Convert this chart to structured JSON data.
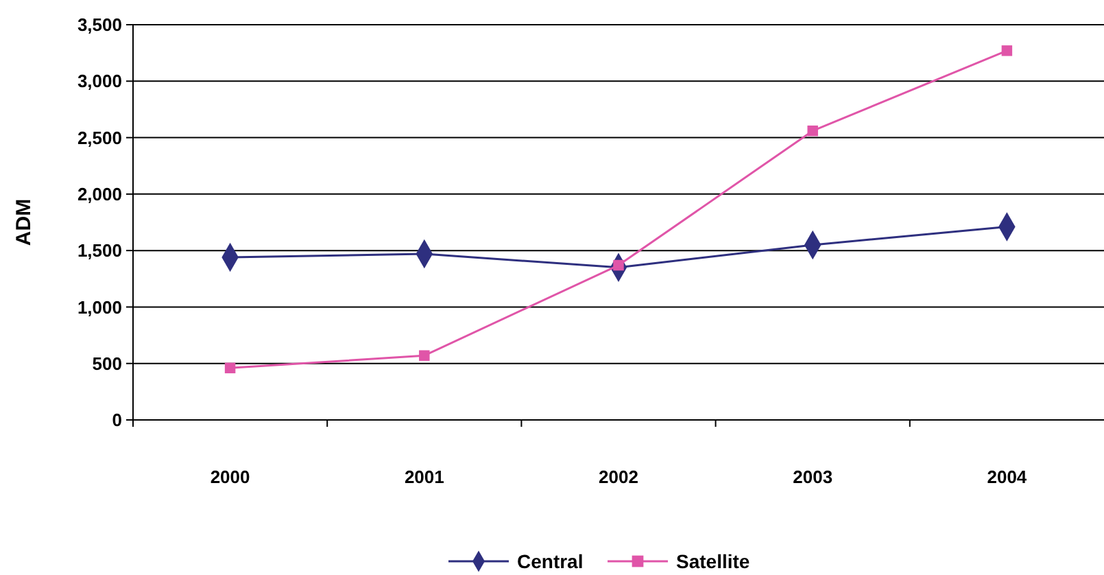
{
  "chart_data": {
    "type": "line",
    "ylabel": "ADM",
    "categories": [
      "2000",
      "2001",
      "2002",
      "2003",
      "2004"
    ],
    "series": [
      {
        "name": "Central",
        "color": "#2e2f7f",
        "marker": "diamond",
        "values": [
          1440,
          1470,
          1350,
          1550,
          1710
        ]
      },
      {
        "name": "Satellite",
        "color": "#e055a8",
        "marker": "square",
        "values": [
          460,
          570,
          1370,
          2560,
          3270
        ]
      }
    ],
    "ylim": [
      0,
      3500
    ],
    "yticks": [
      {
        "value": 0,
        "label": "0"
      },
      {
        "value": 500,
        "label": "500"
      },
      {
        "value": 1000,
        "label": "1,000"
      },
      {
        "value": 1500,
        "label": "1,500"
      },
      {
        "value": 2000,
        "label": "2,000"
      },
      {
        "value": 2500,
        "label": "2,500"
      },
      {
        "value": 3000,
        "label": "3,000"
      },
      {
        "value": 3500,
        "label": "3,500"
      }
    ],
    "grid": "y",
    "legend": "bottom"
  }
}
